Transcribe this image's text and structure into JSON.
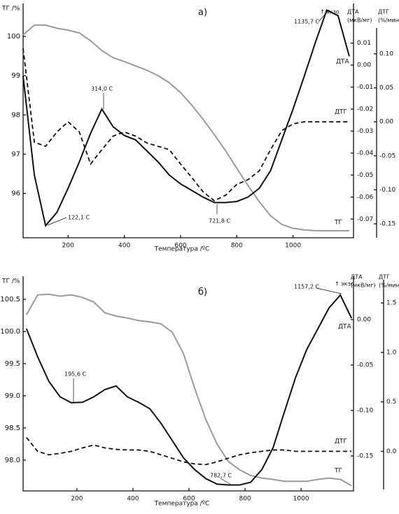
{
  "chart_data": [
    {
      "type": "line",
      "panel_label": "а)",
      "ylabel": "ТГ /%",
      "y2label": [
        "ДТА",
        "(мкВ/мг)"
      ],
      "y3label": [
        "ДТГ",
        "(%/мин)"
      ],
      "xlabel": "Температура /ºС",
      "annotations": [
        "1135,7  С",
        "314,0  С",
        "122,1  С",
        "721,8  С",
        "↑ экзо"
      ],
      "x": [
        40,
        80,
        120,
        160,
        200,
        240,
        280,
        320,
        360,
        400,
        440,
        480,
        520,
        560,
        600,
        640,
        680,
        720,
        760,
        800,
        840,
        880,
        920,
        960,
        1000,
        1040,
        1080,
        1120,
        1160,
        1200
      ],
      "xlim": [
        40,
        1215
      ],
      "xticks": [
        200,
        400,
        600,
        800,
        1000
      ],
      "ylim": [
        94.87,
        100.84
      ],
      "yticks": [
        96,
        97,
        98,
        99,
        100
      ],
      "y2lim": [
        -0.0785,
        0.028
      ],
      "y2ticks": [
        {
          "value": 0.01,
          "label": "0.01"
        },
        {
          "value": 0,
          "label": "0.00"
        },
        -0.01,
        -0.02,
        -0.03,
        -0.04,
        -0.05,
        -0.06,
        -0.07
      ],
      "y3lim": [
        -0.1705,
        0.174
      ],
      "y3ticks": [
        {
          "value": 0.1,
          "label": "0.10"
        },
        0.05,
        {
          "value": 0,
          "label": "0.00"
        },
        -0.05,
        {
          "value": -0.1,
          "label": "-0.10"
        },
        -0.15
      ],
      "series": [
        {
          "name": "ТГ",
          "color": "#9a9a9a",
          "dash": false,
          "axis": "y",
          "values": [
            100.04,
            100.29,
            100.29,
            100.21,
            100.16,
            100.09,
            99.89,
            99.64,
            99.46,
            99.36,
            99.25,
            99.14,
            99.0,
            98.82,
            98.57,
            98.25,
            97.89,
            97.5,
            97.09,
            96.64,
            96.2,
            95.79,
            95.43,
            95.21,
            95.11,
            95.07,
            95.05,
            95.05,
            95.05,
            95.05
          ]
        },
        {
          "name": "ДТА",
          "color": "#111111",
          "dash": false,
          "axis": "y2",
          "values": [
            -0.005,
            -0.05,
            -0.073,
            -0.067,
            -0.056,
            -0.044,
            -0.031,
            -0.02,
            -0.028,
            -0.032,
            -0.034,
            -0.039,
            -0.044,
            -0.05,
            -0.054,
            -0.057,
            -0.06,
            -0.0625,
            -0.0625,
            -0.062,
            -0.06,
            -0.056,
            -0.048,
            -0.034,
            -0.02,
            -0.005,
            0.0105,
            0.025,
            0.0225,
            0.004
          ]
        },
        {
          "name": "ДТГ",
          "color": "#111111",
          "dash": true,
          "axis": "y3",
          "values": [
            0.108,
            -0.03,
            -0.036,
            -0.015,
            0,
            -0.015,
            -0.062,
            -0.041,
            -0.021,
            -0.015,
            -0.021,
            -0.031,
            -0.036,
            -0.041,
            -0.062,
            -0.082,
            -0.103,
            -0.116,
            -0.108,
            -0.092,
            -0.085,
            -0.072,
            -0.041,
            -0.013,
            -0.003,
            0,
            0,
            0,
            0,
            0
          ]
        }
      ]
    },
    {
      "type": "line",
      "panel_label": "б)",
      "ylabel": "ТГ /%",
      "y2label": [
        "ДТА",
        "(мкВ/мг)"
      ],
      "y3label": [
        "ДТГ",
        "(%/мин)"
      ],
      "xlabel": "Температура /ºС",
      "annotations": [
        "1157,2  С",
        "195,6  С",
        "782,7  С",
        "↑ экзо"
      ],
      "x": [
        20,
        60,
        100,
        140,
        180,
        220,
        260,
        300,
        340,
        380,
        420,
        460,
        500,
        540,
        580,
        620,
        660,
        700,
        740,
        780,
        820,
        860,
        900,
        940,
        980,
        1020,
        1060,
        1100,
        1140,
        1180
      ],
      "xlim": [
        8,
        1187
      ],
      "xticks": [
        200,
        400,
        600,
        800,
        1000
      ],
      "ylim": [
        97.52,
        100.86
      ],
      "yticks": [
        100.5,
        {
          "value": 100,
          "label": "100.0"
        },
        99.5,
        {
          "value": 99,
          "label": "99.0"
        },
        98.5,
        {
          "value": 98,
          "label": "98.0"
        }
      ],
      "y2lim": [
        -0.1885,
        0.0477
      ],
      "y2ticks": [
        {
          "value": 0,
          "label": "0.00"
        },
        -0.05,
        {
          "value": -0.1,
          "label": "-0.10"
        },
        -0.15
      ],
      "y3lim": [
        -0.4,
        1.77
      ],
      "y3ticks": [
        1.5,
        {
          "value": 1,
          "label": "1.0"
        },
        0.5,
        {
          "value": 0,
          "label": "0.0"
        }
      ],
      "series": [
        {
          "name": "ТГ",
          "color": "#9a9a9a",
          "dash": false,
          "axis": "y",
          "values": [
            100.26,
            100.57,
            100.58,
            100.55,
            100.57,
            100.53,
            100.46,
            100.29,
            100.24,
            100.21,
            100.17,
            100.15,
            100.12,
            99.99,
            99.66,
            99.12,
            98.63,
            98.25,
            97.98,
            97.85,
            97.76,
            97.72,
            97.7,
            97.67,
            97.67,
            97.67,
            97.7,
            97.72,
            97.7,
            97.6
          ]
        },
        {
          "name": "ДТА",
          "color": "#111111",
          "dash": false,
          "axis": "y2",
          "values": [
            -0.01,
            -0.041,
            -0.068,
            -0.085,
            -0.0915,
            -0.091,
            -0.085,
            -0.077,
            -0.073,
            -0.085,
            -0.091,
            -0.098,
            -0.114,
            -0.133,
            -0.152,
            -0.165,
            -0.175,
            -0.181,
            -0.182,
            -0.182,
            -0.179,
            -0.165,
            -0.141,
            -0.102,
            -0.064,
            -0.033,
            -0.01,
            0.013,
            0.027,
            0.0015
          ]
        },
        {
          "name": "ДТГ",
          "color": "#111111",
          "dash": true,
          "axis": "y3",
          "values": [
            0.14,
            0,
            -0.035,
            -0.02,
            0,
            0.035,
            0.064,
            0.035,
            0.02,
            0.014,
            0.014,
            0,
            -0.035,
            -0.07,
            -0.106,
            -0.127,
            -0.134,
            -0.106,
            -0.07,
            -0.035,
            -0.014,
            0,
            0.014,
            0.014,
            0,
            0,
            0,
            0,
            0,
            0
          ]
        }
      ]
    }
  ]
}
